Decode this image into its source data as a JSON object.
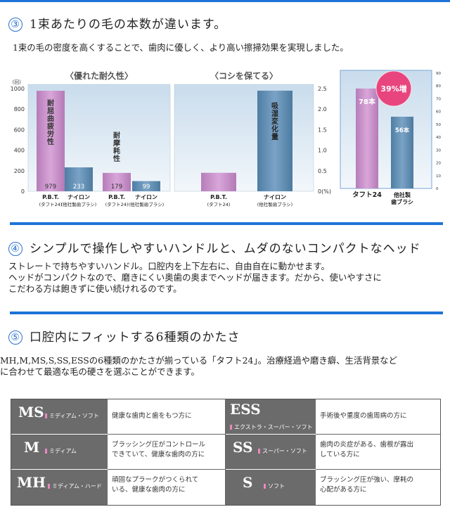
{
  "section3": {
    "number": "③",
    "title": "1束あたりの毛の本数が違います。",
    "text": "1束の毛の密度を高くすることで、歯肉に優しく、より高い擦掃効果を実現しました。"
  },
  "chart_data": [
    {
      "type": "bar",
      "title": "〈優れた耐久性〉",
      "ylabel": "(回)",
      "ylim": [
        0,
        1000
      ],
      "yticks": [
        "0",
        "200",
        "400",
        "600",
        "800",
        "1000"
      ],
      "groups": [
        {
          "label": "耐屈曲疲労性",
          "categories": [
            [
              "P.B.T.",
              "(タフト24)"
            ],
            [
              "ナイロン",
              "(他社製歯ブラシ)"
            ]
          ],
          "values": [
            979,
            233
          ]
        },
        {
          "label": "耐摩耗性",
          "categories": [
            [
              "P.B.T.",
              "(タフト24)"
            ],
            [
              "ナイロン",
              "(他社製歯ブラシ)"
            ]
          ],
          "values": [
            179,
            99
          ]
        }
      ]
    },
    {
      "type": "bar",
      "title": "〈コシを保てる〉",
      "ylabel": "(%)",
      "ylim": [
        0,
        2.5
      ],
      "yticks": [
        "0",
        "0.5",
        "1.0",
        "1.5",
        "2.0",
        "2.5"
      ],
      "bar_label": "吸湿変化量",
      "categories": [
        [
          "P.B.T.",
          "(タフト24)"
        ],
        [
          "ナイロン",
          "(他社製歯ブラシ)"
        ]
      ],
      "values": [
        0.45,
        2.45
      ]
    },
    {
      "type": "bar",
      "ylim": [
        0,
        90
      ],
      "yticks": [
        "0",
        "10",
        "20",
        "30",
        "40",
        "50",
        "60",
        "70",
        "80",
        "90"
      ],
      "categories": [
        [
          "タフト24"
        ],
        [
          "他社製",
          "歯ブラシ"
        ]
      ],
      "values": [
        78,
        56
      ],
      "data_labels": [
        "78本",
        "56本"
      ],
      "badge": "39%増"
    }
  ],
  "colors": {
    "section_rule": "#1e73d8",
    "pbt_bar": "#c78ac9",
    "nylon_bar": "#5f8db2",
    "badge": "#e8457e",
    "tag_bg": "#6b6b6b"
  },
  "section4": {
    "number": "④",
    "title": "シンプルで操作しやすいハンドルと、ムダのないコンパクトなヘッド",
    "lines": [
      "ストレートで持ちやすいハンドル。口腔内を上下左右に、自由自在に動かせます。",
      "ヘッドがコンパクトなので、磨きにくい奥歯の奥までヘッドが届きます。だから、使いやすさに",
      "こだわる方は飽きずに使い続けれるのです。"
    ]
  },
  "section5": {
    "number": "⑤",
    "title": "口腔内にフィットする6種類のかたさ",
    "lines": [
      "MH,M,MS,S,SS,ESSの6種類のかたさが揃っている「タフト24」。治療経過や磨き癖、生活背景など",
      "に合わせて最適な毛の硬さを選ぶことができます。"
    ]
  },
  "hardness_table": [
    {
      "code": "MS",
      "sub": "ミディアム・ソフト",
      "desc": "健康な歯肉と歯をもつ方に"
    },
    {
      "code": "ESS",
      "sub": "エクストラ・スーパー・ソフト",
      "desc": "手術後や重度の歯周病の方に"
    },
    {
      "code": "M",
      "sub": "ミディアム",
      "desc": "ブラッシング圧がコントロール\nできていて、健康な歯肉の方に"
    },
    {
      "code": "SS",
      "sub": "スーパー・ソフト",
      "desc": "歯肉の炎症がある、歯根が露出\nしている方に"
    },
    {
      "code": "MH",
      "sub": "ミディアム・ハード",
      "desc": "頑固なプラークがつくられて\nいる、健康な歯肉の方に"
    },
    {
      "code": "S",
      "sub": "ソフト",
      "desc": "ブラッシング圧が強い、摩耗の\n心配がある方に"
    }
  ]
}
